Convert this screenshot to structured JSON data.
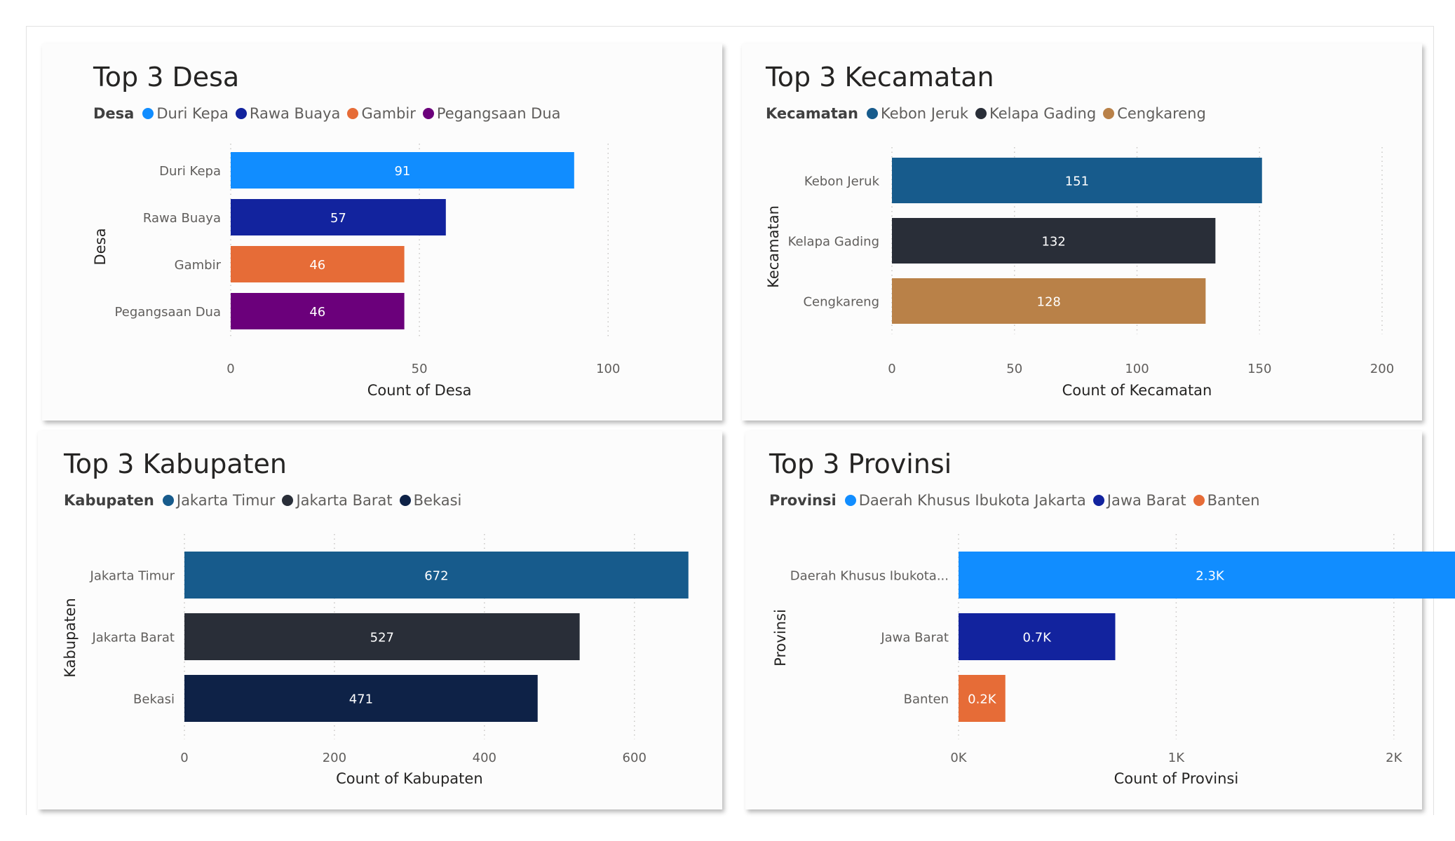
{
  "chart_data": [
    {
      "type": "bar",
      "orientation": "horizontal",
      "title": "Top 3 Desa",
      "legend_title": "Desa",
      "categories": [
        "Duri Kepa",
        "Rawa Buaya",
        "Gambir",
        "Pegangsaan Dua"
      ],
      "values": [
        91,
        57,
        46,
        46
      ],
      "value_labels": [
        "91",
        "57",
        "46",
        "46"
      ],
      "colors": [
        "#118dff",
        "#12239e",
        "#e66c37",
        "#6b007b"
      ],
      "xlabel": "Count of Desa",
      "ylabel": "Desa",
      "xlim": [
        0,
        115
      ],
      "xticks": [
        0,
        50,
        100
      ],
      "xtick_labels": [
        "0",
        "50",
        "100"
      ],
      "legend_position": "top-left",
      "grid": true
    },
    {
      "type": "bar",
      "orientation": "horizontal",
      "title": "Top 3 Kecamatan",
      "legend_title": "Kecamatan",
      "categories": [
        "Kebon Jeruk",
        "Kelapa Gading",
        "Cengkareng"
      ],
      "values": [
        151,
        132,
        128
      ],
      "value_labels": [
        "151",
        "132",
        "128"
      ],
      "colors": [
        "#175b8c",
        "#292e38",
        "#b98148"
      ],
      "xlabel": "Count of Kecamatan",
      "ylabel": "Kecamatan",
      "xlim": [
        0,
        200
      ],
      "xticks": [
        0,
        50,
        100,
        150,
        200
      ],
      "xtick_labels": [
        "0",
        "50",
        "100",
        "150",
        "200"
      ],
      "legend_position": "top-left",
      "grid": true
    },
    {
      "type": "bar",
      "orientation": "horizontal",
      "title": "Top 3 Kabupaten",
      "legend_title": "Kabupaten",
      "categories": [
        "Jakarta Timur",
        "Jakarta Barat",
        "Bekasi"
      ],
      "values": [
        672,
        527,
        471
      ],
      "value_labels": [
        "672",
        "527",
        "471"
      ],
      "colors": [
        "#175b8c",
        "#292e38",
        "#0e2247"
      ],
      "xlabel": "Count of Kabupaten",
      "ylabel": "Kabupaten",
      "xlim": [
        0,
        690
      ],
      "xticks": [
        0,
        200,
        400,
        600
      ],
      "xtick_labels": [
        "0",
        "200",
        "400",
        "600"
      ],
      "legend_position": "top-left",
      "grid": true
    },
    {
      "type": "bar",
      "orientation": "horizontal",
      "title": "Top 3 Provinsi",
      "legend_title": "Provinsi",
      "categories": [
        "Daerah Khusus Ibukota...",
        "Jawa Barat",
        "Banten"
      ],
      "legend_entries": [
        "Daerah Khusus Ibukota Jakarta",
        "Jawa Barat",
        "Banten"
      ],
      "values": [
        2310,
        720,
        215
      ],
      "value_labels": [
        "2.3K",
        "0.7K",
        "0.2K"
      ],
      "colors": [
        "#118dff",
        "#12239e",
        "#e66c37"
      ],
      "xlabel": "Count of Provinsi",
      "ylabel": "Provinsi",
      "xlim": [
        0,
        2500
      ],
      "xticks": [
        0,
        1000,
        2000
      ],
      "xtick_labels": [
        "0K",
        "1K",
        "2K"
      ],
      "legend_position": "top-left",
      "grid": true
    }
  ]
}
